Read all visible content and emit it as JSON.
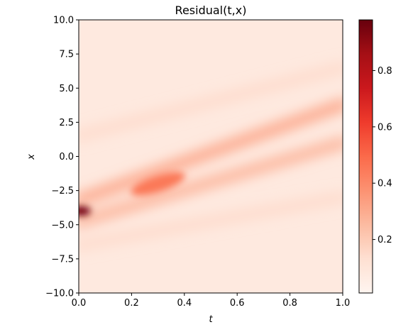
{
  "chart_data": {
    "type": "heatmap",
    "title": "Residual(t,x)",
    "xlabel": "t",
    "ylabel": "x",
    "xlim": [
      0.0,
      1.0
    ],
    "ylim": [
      -10.0,
      10.0
    ],
    "xticks": [
      "0.0",
      "0.2",
      "0.4",
      "0.6",
      "0.8",
      "1.0"
    ],
    "yticks": [
      "10.0",
      "7.5",
      "5.0",
      "2.5",
      "0.0",
      "−2.5",
      "−5.0",
      "−7.5",
      "−10.0"
    ],
    "colormap": "Reds",
    "colorbar": {
      "range": [
        0.01,
        0.98
      ],
      "ticks": [
        "0.2",
        "0.4",
        "0.6",
        "0.8"
      ]
    },
    "features": [
      {
        "name": "peak",
        "t": 0.0,
        "x": -4.0,
        "value": 0.95
      },
      {
        "name": "main-band-upper",
        "t_start": 0.0,
        "x_start": -3.2,
        "t_end": 1.0,
        "x_end": 3.8,
        "value": 0.35
      },
      {
        "name": "main-band-lower",
        "t_start": 0.0,
        "x_start": -4.8,
        "t_end": 1.0,
        "x_end": 1.0,
        "value": 0.3
      },
      {
        "name": "mid-blob",
        "t": 0.3,
        "x": -2.0,
        "value": 0.45
      },
      {
        "name": "upper-faint-band",
        "t_start": 0.0,
        "x_start": 1.5,
        "t_end": 1.0,
        "x_end": 6.5,
        "value": 0.15
      },
      {
        "name": "lower-faint-band",
        "t_start": 0.0,
        "x_start": -6.5,
        "t_end": 1.0,
        "x_end": -3.0,
        "value": 0.15
      }
    ],
    "grid": false
  }
}
